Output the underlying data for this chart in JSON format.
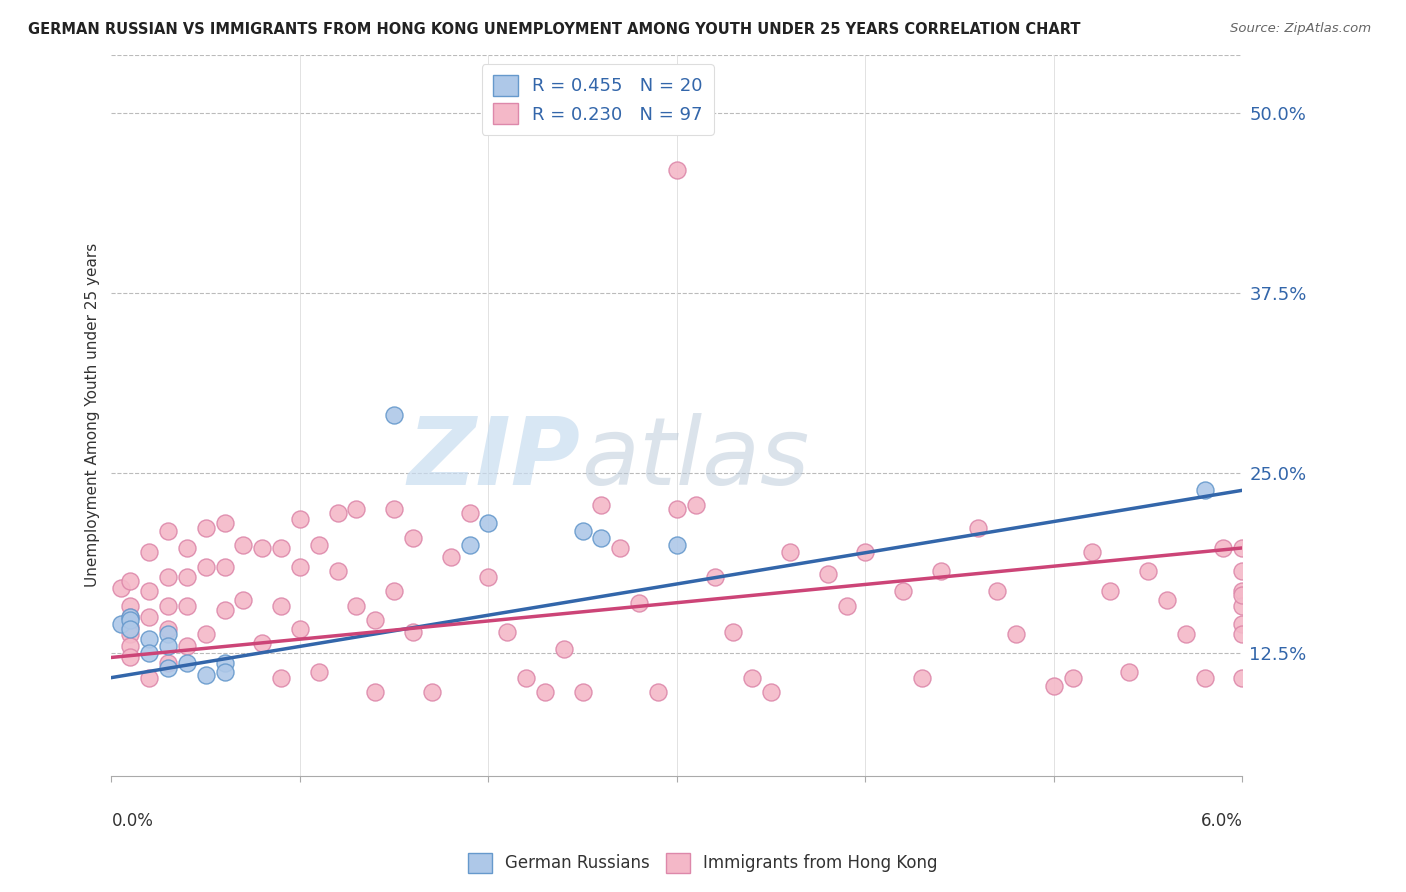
{
  "title": "GERMAN RUSSIAN VS IMMIGRANTS FROM HONG KONG UNEMPLOYMENT AMONG YOUTH UNDER 25 YEARS CORRELATION CHART",
  "source": "Source: ZipAtlas.com",
  "ylabel": "Unemployment Among Youth under 25 years",
  "ytick_labels": [
    "12.5%",
    "25.0%",
    "37.5%",
    "50.0%"
  ],
  "ytick_values": [
    0.125,
    0.25,
    0.375,
    0.5
  ],
  "xlim": [
    0.0,
    0.06
  ],
  "ylim": [
    0.04,
    0.54
  ],
  "blue_R": "0.455",
  "blue_N": "20",
  "pink_R": "0.230",
  "pink_N": "97",
  "blue_color": "#aec8e8",
  "pink_color": "#f4b8c8",
  "blue_edge_color": "#6699cc",
  "pink_edge_color": "#dd88aa",
  "blue_line_color": "#3366aa",
  "pink_line_color": "#cc4477",
  "legend_label_blue": "German Russians",
  "legend_label_pink": "Immigrants from Hong Kong",
  "watermark_zip": "ZIP",
  "watermark_atlas": "atlas",
  "background_color": "#ffffff",
  "grid_color": "#bbbbbb",
  "blue_line_x0": 0.0,
  "blue_line_y0": 0.108,
  "blue_line_x1": 0.06,
  "blue_line_y1": 0.238,
  "pink_line_x0": 0.0,
  "pink_line_y0": 0.122,
  "pink_line_x1": 0.06,
  "pink_line_y1": 0.198,
  "blue_scatter_x": [
    0.0005,
    0.001,
    0.001,
    0.001,
    0.002,
    0.002,
    0.003,
    0.003,
    0.003,
    0.004,
    0.005,
    0.006,
    0.006,
    0.015,
    0.019,
    0.02,
    0.025,
    0.026,
    0.03,
    0.058
  ],
  "blue_scatter_y": [
    0.145,
    0.15,
    0.148,
    0.142,
    0.135,
    0.125,
    0.138,
    0.13,
    0.115,
    0.118,
    0.11,
    0.118,
    0.112,
    0.29,
    0.2,
    0.215,
    0.21,
    0.205,
    0.2,
    0.238
  ],
  "pink_scatter_x": [
    0.0005,
    0.001,
    0.001,
    0.001,
    0.001,
    0.001,
    0.001,
    0.001,
    0.002,
    0.002,
    0.002,
    0.002,
    0.003,
    0.003,
    0.003,
    0.003,
    0.003,
    0.004,
    0.004,
    0.004,
    0.004,
    0.005,
    0.005,
    0.005,
    0.006,
    0.006,
    0.006,
    0.007,
    0.007,
    0.008,
    0.008,
    0.009,
    0.009,
    0.009,
    0.01,
    0.01,
    0.01,
    0.011,
    0.011,
    0.012,
    0.012,
    0.013,
    0.013,
    0.014,
    0.014,
    0.015,
    0.015,
    0.016,
    0.016,
    0.017,
    0.018,
    0.019,
    0.02,
    0.021,
    0.022,
    0.023,
    0.024,
    0.025,
    0.026,
    0.027,
    0.028,
    0.029,
    0.03,
    0.03,
    0.031,
    0.032,
    0.033,
    0.034,
    0.035,
    0.036,
    0.038,
    0.039,
    0.04,
    0.042,
    0.043,
    0.044,
    0.046,
    0.047,
    0.048,
    0.05,
    0.051,
    0.052,
    0.053,
    0.054,
    0.055,
    0.056,
    0.057,
    0.058,
    0.059,
    0.06,
    0.06,
    0.06,
    0.06,
    0.06,
    0.06,
    0.06,
    0.06
  ],
  "pink_scatter_y": [
    0.17,
    0.175,
    0.158,
    0.15,
    0.143,
    0.138,
    0.13,
    0.122,
    0.195,
    0.168,
    0.15,
    0.108,
    0.21,
    0.178,
    0.158,
    0.142,
    0.118,
    0.198,
    0.178,
    0.158,
    0.13,
    0.212,
    0.185,
    0.138,
    0.215,
    0.185,
    0.155,
    0.2,
    0.162,
    0.198,
    0.132,
    0.198,
    0.158,
    0.108,
    0.218,
    0.185,
    0.142,
    0.2,
    0.112,
    0.222,
    0.182,
    0.225,
    0.158,
    0.148,
    0.098,
    0.225,
    0.168,
    0.205,
    0.14,
    0.098,
    0.192,
    0.222,
    0.178,
    0.14,
    0.108,
    0.098,
    0.128,
    0.098,
    0.228,
    0.198,
    0.16,
    0.098,
    0.46,
    0.225,
    0.228,
    0.178,
    0.14,
    0.108,
    0.098,
    0.195,
    0.18,
    0.158,
    0.195,
    0.168,
    0.108,
    0.182,
    0.212,
    0.168,
    0.138,
    0.102,
    0.108,
    0.195,
    0.168,
    0.112,
    0.182,
    0.162,
    0.138,
    0.108,
    0.198,
    0.168,
    0.145,
    0.182,
    0.158,
    0.138,
    0.108,
    0.198,
    0.165
  ]
}
